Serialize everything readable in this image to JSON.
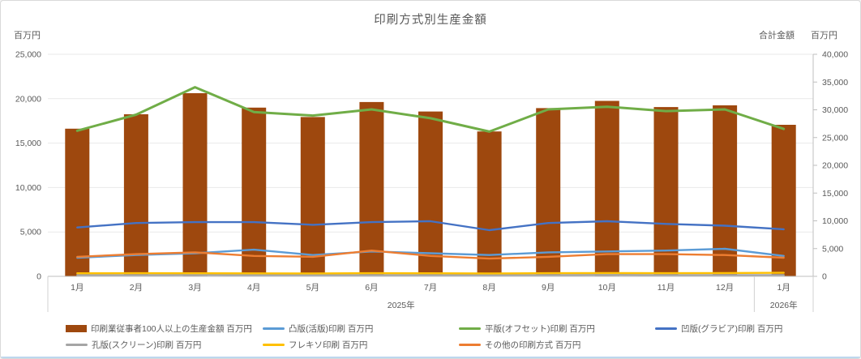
{
  "chart_data": {
    "type": "combo-bar-line",
    "title": "印刷方式別生産金額",
    "left_axis": {
      "unit_label": "百万円",
      "min": 0,
      "max": 25000,
      "step": 5000
    },
    "right_axis": {
      "title": "合計金額",
      "unit_label": "百万円",
      "min": 0,
      "max": 40000,
      "step": 5000
    },
    "categories": [
      "1月",
      "2月",
      "3月",
      "4月",
      "5月",
      "6月",
      "7月",
      "8月",
      "9月",
      "10月",
      "11月",
      "12月",
      "1月"
    ],
    "year_groups": [
      {
        "label": "2025年",
        "from": 0,
        "to": 11
      },
      {
        "label": "2026年",
        "from": 12,
        "to": 12
      }
    ],
    "grid": true,
    "legend_position": "bottom",
    "legend_columns": 4,
    "series": [
      {
        "name": "印刷業従事者100人以上の生産金額 百万円",
        "type": "bar",
        "axis": "right",
        "color": "#9E480E",
        "values": [
          26600,
          29200,
          33000,
          30400,
          28700,
          31400,
          29700,
          26100,
          30300,
          31600,
          30500,
          30800,
          27300
        ]
      },
      {
        "name": "凸版(活版)印刷 百万円",
        "type": "line",
        "axis": "left",
        "color": "#5B9BD5",
        "values": [
          2100,
          2400,
          2600,
          3000,
          2400,
          2800,
          2600,
          2400,
          2700,
          2800,
          2900,
          3100,
          2300
        ]
      },
      {
        "name": "平版(オフセット)印刷 百万円",
        "type": "line",
        "axis": "left",
        "color": "#70AD47",
        "emphasis": true,
        "values": [
          16400,
          18200,
          21300,
          18500,
          18100,
          18800,
          17800,
          16300,
          18800,
          19100,
          18600,
          18800,
          16600
        ]
      },
      {
        "name": "凹版(グラビア)印刷 百万円",
        "type": "line",
        "axis": "left",
        "color": "#4472C4",
        "values": [
          5500,
          6000,
          6100,
          6100,
          5800,
          6100,
          6200,
          5200,
          6000,
          6200,
          5900,
          5700,
          5300
        ]
      },
      {
        "name": "孔版(スクリーン)印刷 百万円",
        "type": "line",
        "axis": "left",
        "color": "#A5A5A5",
        "values": [
          150,
          150,
          160,
          150,
          140,
          150,
          150,
          140,
          150,
          160,
          150,
          150,
          140
        ]
      },
      {
        "name": "フレキソ印刷 百万円",
        "type": "line",
        "axis": "left",
        "color": "#FFC000",
        "values": [
          350,
          360,
          350,
          340,
          330,
          360,
          350,
          330,
          360,
          370,
          360,
          370,
          400
        ]
      },
      {
        "name": "その他の印刷方式 百万円",
        "type": "line",
        "axis": "left",
        "color": "#ED7D31",
        "values": [
          2200,
          2500,
          2700,
          2300,
          2200,
          2900,
          2300,
          2000,
          2200,
          2500,
          2500,
          2400,
          2100
        ]
      }
    ]
  }
}
